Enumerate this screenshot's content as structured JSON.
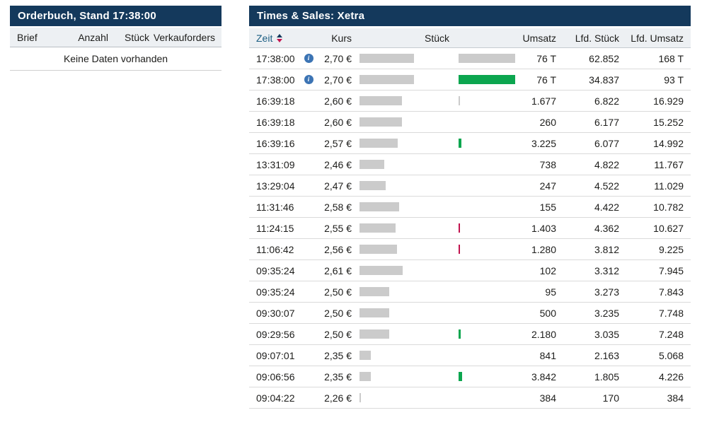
{
  "orderbook": {
    "title": "Orderbuch, Stand 17:38:00",
    "columns": [
      "Brief",
      "Anzahl",
      "Stück",
      "Verkauforders"
    ],
    "empty_message": "Keine Daten vorhanden"
  },
  "times_sales": {
    "title": "Times & Sales: Xetra",
    "columns": {
      "zeit": "Zeit",
      "kurs": "Kurs",
      "stueck": "Stück",
      "umsatz": "Umsatz",
      "lfd_stueck": "Lfd. Stück",
      "lfd_umsatz": "Lfd. Umsatz"
    },
    "rows": [
      {
        "time": "17:38:00",
        "info": true,
        "price": "2,70 €",
        "price_bar": 77,
        "volume": "28.015",
        "volume_bar": 80,
        "volume_bar_color": "neutral_bar",
        "umsatz": "76 T",
        "lfd_stueck": "62.852",
        "lfd_umsatz": "168 T"
      },
      {
        "time": "17:38:00",
        "info": true,
        "price": "2,70 €",
        "price_bar": 77,
        "volume": "28.015",
        "volume_bar": 80,
        "volume_bar_color": "green",
        "umsatz": "76 T",
        "lfd_stueck": "34.837",
        "lfd_umsatz": "93 T"
      },
      {
        "time": "16:39:18",
        "info": false,
        "price": "2,60 €",
        "price_bar": 60,
        "volume": "645",
        "volume_bar": 2,
        "volume_bar_color": "neutral_bar",
        "umsatz": "1.677",
        "lfd_stueck": "6.822",
        "lfd_umsatz": "16.929"
      },
      {
        "time": "16:39:18",
        "info": false,
        "price": "2,60 €",
        "price_bar": 60,
        "volume": "100",
        "volume_bar": 0,
        "volume_bar_color": null,
        "umsatz": "260",
        "lfd_stueck": "6.177",
        "lfd_umsatz": "15.252"
      },
      {
        "time": "16:39:16",
        "info": false,
        "price": "2,57 €",
        "price_bar": 54,
        "volume": "1.255",
        "volume_bar": 4,
        "volume_bar_color": "green",
        "umsatz": "3.225",
        "lfd_stueck": "6.077",
        "lfd_umsatz": "14.992"
      },
      {
        "time": "13:31:09",
        "info": false,
        "price": "2,46 €",
        "price_bar": 35,
        "volume": "300",
        "volume_bar": 0,
        "volume_bar_color": null,
        "umsatz": "738",
        "lfd_stueck": "4.822",
        "lfd_umsatz": "11.767"
      },
      {
        "time": "13:29:04",
        "info": false,
        "price": "2,47 €",
        "price_bar": 37,
        "volume": "100",
        "volume_bar": 0,
        "volume_bar_color": null,
        "umsatz": "247",
        "lfd_stueck": "4.522",
        "lfd_umsatz": "11.029"
      },
      {
        "time": "11:31:46",
        "info": false,
        "price": "2,58 €",
        "price_bar": 56,
        "volume": "60",
        "volume_bar": 0,
        "volume_bar_color": null,
        "umsatz": "155",
        "lfd_stueck": "4.422",
        "lfd_umsatz": "10.782"
      },
      {
        "time": "11:24:15",
        "info": false,
        "price": "2,55 €",
        "price_bar": 51,
        "volume": "550",
        "volume_bar": 2,
        "volume_bar_color": "red",
        "umsatz": "1.403",
        "lfd_stueck": "4.362",
        "lfd_umsatz": "10.627"
      },
      {
        "time": "11:06:42",
        "info": false,
        "price": "2,56 €",
        "price_bar": 53,
        "volume": "500",
        "volume_bar": 2,
        "volume_bar_color": "red",
        "umsatz": "1.280",
        "lfd_stueck": "3.812",
        "lfd_umsatz": "9.225"
      },
      {
        "time": "09:35:24",
        "info": false,
        "price": "2,61 €",
        "price_bar": 61,
        "volume": "39",
        "volume_bar": 0,
        "volume_bar_color": null,
        "umsatz": "102",
        "lfd_stueck": "3.312",
        "lfd_umsatz": "7.945"
      },
      {
        "time": "09:35:24",
        "info": false,
        "price": "2,50 €",
        "price_bar": 42,
        "volume": "38",
        "volume_bar": 0,
        "volume_bar_color": null,
        "umsatz": "95",
        "lfd_stueck": "3.273",
        "lfd_umsatz": "7.843"
      },
      {
        "time": "09:30:07",
        "info": false,
        "price": "2,50 €",
        "price_bar": 42,
        "volume": "200",
        "volume_bar": 0,
        "volume_bar_color": null,
        "umsatz": "500",
        "lfd_stueck": "3.235",
        "lfd_umsatz": "7.748"
      },
      {
        "time": "09:29:56",
        "info": false,
        "price": "2,50 €",
        "price_bar": 42,
        "volume": "872",
        "volume_bar": 3,
        "volume_bar_color": "green",
        "umsatz": "2.180",
        "lfd_stueck": "3.035",
        "lfd_umsatz": "7.248"
      },
      {
        "time": "09:07:01",
        "info": false,
        "price": "2,35 €",
        "price_bar": 16,
        "volume": "358",
        "volume_bar": 0,
        "volume_bar_color": null,
        "umsatz": "841",
        "lfd_stueck": "2.163",
        "lfd_umsatz": "5.068"
      },
      {
        "time": "09:06:56",
        "info": false,
        "price": "2,35 €",
        "price_bar": 16,
        "volume": "1.635",
        "volume_bar": 5,
        "volume_bar_color": "green",
        "umsatz": "3.842",
        "lfd_stueck": "1.805",
        "lfd_umsatz": "4.226"
      },
      {
        "time": "09:04:22",
        "info": false,
        "price": "2,26 €",
        "price_bar": 2,
        "volume": "170",
        "volume_bar": 0,
        "volume_bar_color": null,
        "umsatz": "384",
        "lfd_stueck": "170",
        "lfd_umsatz": "384"
      }
    ]
  },
  "colors": {
    "title_bg": "#14395c",
    "header_row_bg": "#edf0f3",
    "neutral_bar": "#cbcbcb",
    "green": "#0ca64f",
    "red": "#c1134e",
    "info_icon": "#3c74b4",
    "link": "#1a5d82"
  },
  "icons": {
    "info": "info-icon",
    "sort": "sort-arrows-icon"
  }
}
